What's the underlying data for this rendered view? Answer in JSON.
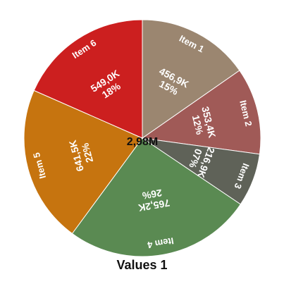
{
  "chart_data": {
    "type": "pie",
    "title": "Values 1",
    "center_label": "2,98M",
    "slices": [
      {
        "category": "Item 1",
        "value": 456.9,
        "value_label": "456,9K",
        "percent_label": "15%",
        "color": "#9b8670"
      },
      {
        "category": "Item 2",
        "value": 353.4,
        "value_label": "353,4K",
        "percent_label": "12%",
        "color": "#a05a57"
      },
      {
        "category": "Item 3",
        "value": 216.9,
        "value_label": "216,9K",
        "percent_label": "07%",
        "color": "#5f6258"
      },
      {
        "category": "Item 4",
        "value": 765.2,
        "value_label": "765,2K",
        "percent_label": "26%",
        "color": "#5a8a52"
      },
      {
        "category": "Item 5",
        "value": 641.5,
        "value_label": "641,5K",
        "percent_label": "22%",
        "color": "#c6740f"
      },
      {
        "category": "Item 6",
        "value": 549.0,
        "value_label": "549,0K",
        "percent_label": "18%",
        "color": "#cc1f1f"
      }
    ]
  }
}
